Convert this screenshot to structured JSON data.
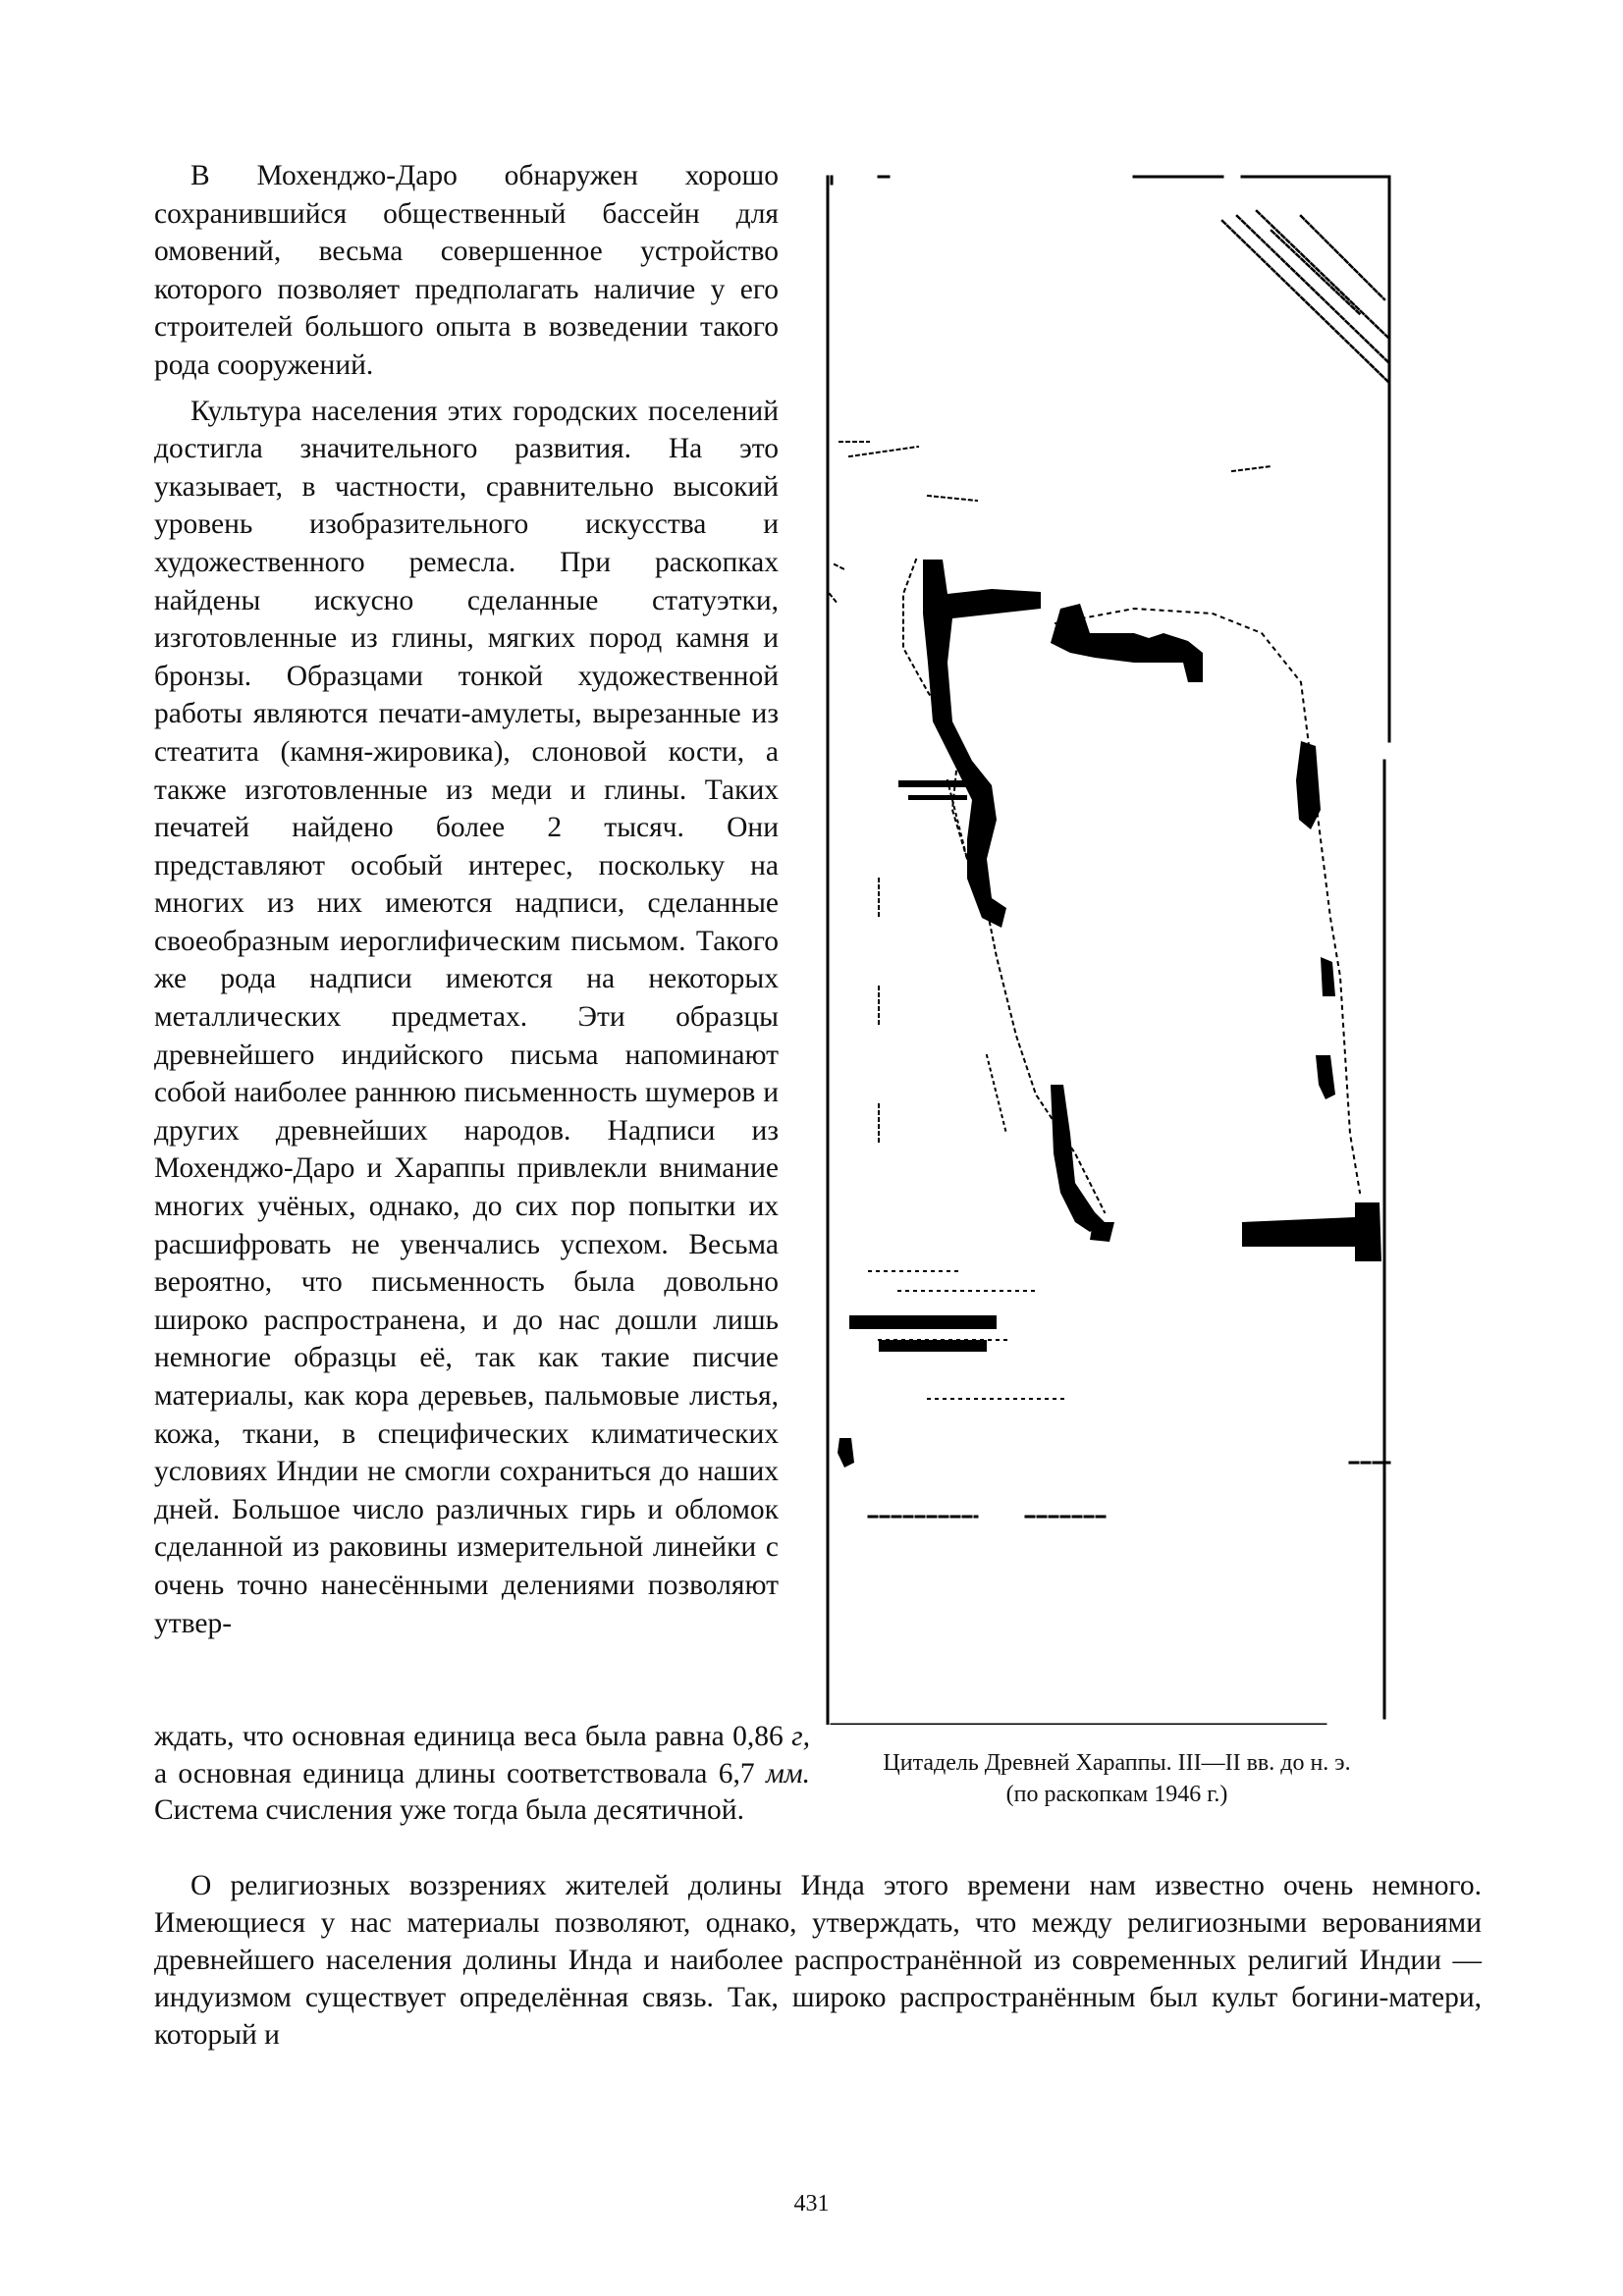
{
  "left_column": {
    "paragraph_1": "В Мохенджо-Даро обнаружен хорошо сохранившийся общественный бассейн для омовений, весьма совершенное устройство которого позволяет предполагать наличие у его строителей большого опыта в возведении такого рода сооружений.",
    "paragraph_2": "Культура населения этих городских поселений достигла значительного развития. На это указывает, в частности, сравнительно высокий уровень изобразительного искусства и художественного ремесла. При раскопках найдены искусно сделанные статуэтки, изготовленные из глины, мягких пород камня и бронзы. Образцами тонкой художественной работы являются печати-амулеты, вырезанные из стеатита (камня-жировика), слоновой кости, а также изготовленные из меди и глины. Таких печатей найдено более 2 тысяч. Они представляют особый интерес, поскольку на многих из них имеются надписи, сделанные своеобразным иероглифическим письмом. Такого же рода надписи имеются на некоторых металлических предметах. Эти образцы древнейшего индийского письма напоминают собой наиболее раннюю письменность шумеров и других древнейших народов. Надписи из Мохенджо-Даро и Хараппы привлекли внимание многих учёных, однако, до сих пор попытки их расшифровать не увенчались успехом. Весьма вероятно, что письменность была довольно широко распространена, и до нас дошли лишь немногие образцы её, так как такие писчие материалы, как кора деревьев, пальмовые листья, кожа, ткани, в специфических климатических условиях Индии не смогли сохраниться до наших дней. Большое число различных гирь и обломок сделанной из раковины измерительной линейки с очень точно нанесёнными делениями позволяют утвер-"
  },
  "continuation": {
    "part_1": "ждать, что основная единица веса была равна 0,86 ",
    "unit_weight": "г,",
    "part_2": " а основная единица длины соответствовала 6,7 ",
    "unit_length": "мм.",
    "part_3": " Система счисления уже тогда была десятичной."
  },
  "full_width": {
    "paragraph": "О религиозных воззрениях жителей долины Инда этого времени нам известно очень немного. Имеющиеся у нас материалы позволяют, однако, утверждать, что между религиозными верованиями древнейшего населения долины Инда и наиболее распространённой из современных религий Индии — индуизмом существует определённая связь. Так, широко распространённым был культ богини-матери, который и"
  },
  "figure": {
    "caption_line_1": "Цитадель Древней Хараппы. III—II вв. до н. э.",
    "caption_line_2": "(по раскопкам 1946 г.)"
  },
  "page_number": "431"
}
